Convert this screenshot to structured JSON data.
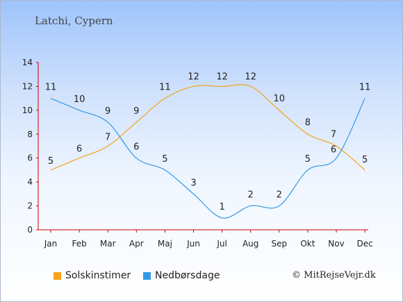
{
  "header": {
    "title": "Latchi, Cypern"
  },
  "footer": {
    "copyright": "© MitRejseVejr.dk"
  },
  "chart_data": {
    "type": "line",
    "categories": [
      "Jan",
      "Feb",
      "Mar",
      "Apr",
      "Maj",
      "Jun",
      "Jul",
      "Aug",
      "Sep",
      "Okt",
      "Nov",
      "Dec"
    ],
    "ylim": [
      0,
      14
    ],
    "yticks": [
      0,
      2,
      4,
      6,
      8,
      10,
      12,
      14
    ],
    "grid": false,
    "legend_position": "bottom-left",
    "series": [
      {
        "name": "Solskinstimer",
        "color": "#f7a21b",
        "values": [
          5,
          6,
          7,
          9,
          11,
          12,
          12,
          12,
          10,
          8,
          7,
          5
        ]
      },
      {
        "name": "Nedbørsdage",
        "color": "#3399e6",
        "values": [
          11,
          10,
          9,
          6,
          5,
          3,
          1,
          2,
          2,
          5,
          6,
          11
        ]
      }
    ]
  }
}
